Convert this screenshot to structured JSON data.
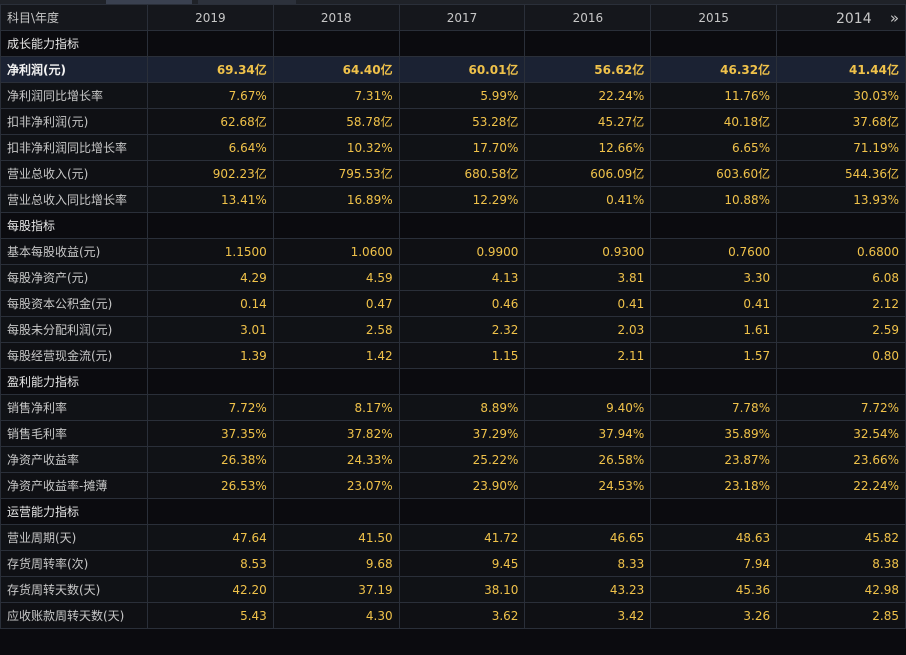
{
  "header": {
    "corner_label": "科目\\年度",
    "years": [
      "2019",
      "2018",
      "2017",
      "2016",
      "2015",
      "2014"
    ],
    "next_icon": "double-chevron-right"
  },
  "sections": [
    {
      "title": "成长能力指标",
      "rows": [
        {
          "label": "净利润(元)",
          "highlight": true,
          "values": [
            "69.34亿",
            "64.40亿",
            "60.01亿",
            "56.62亿",
            "46.32亿",
            "41.44亿"
          ]
        },
        {
          "label": "净利润同比增长率",
          "values": [
            "7.67%",
            "7.31%",
            "5.99%",
            "22.24%",
            "11.76%",
            "30.03%"
          ]
        },
        {
          "label": "扣非净利润(元)",
          "values": [
            "62.68亿",
            "58.78亿",
            "53.28亿",
            "45.27亿",
            "40.18亿",
            "37.68亿"
          ]
        },
        {
          "label": "扣非净利润同比增长率",
          "values": [
            "6.64%",
            "10.32%",
            "17.70%",
            "12.66%",
            "6.65%",
            "71.19%"
          ]
        },
        {
          "label": "营业总收入(元)",
          "values": [
            "902.23亿",
            "795.53亿",
            "680.58亿",
            "606.09亿",
            "603.60亿",
            "544.36亿"
          ]
        },
        {
          "label": "营业总收入同比增长率",
          "values": [
            "13.41%",
            "16.89%",
            "12.29%",
            "0.41%",
            "10.88%",
            "13.93%"
          ]
        }
      ]
    },
    {
      "title": "每股指标",
      "rows": [
        {
          "label": "基本每股收益(元)",
          "values": [
            "1.1500",
            "1.0600",
            "0.9900",
            "0.9300",
            "0.7600",
            "0.6800"
          ]
        },
        {
          "label": "每股净资产(元)",
          "values": [
            "4.29",
            "4.59",
            "4.13",
            "3.81",
            "3.30",
            "6.08"
          ]
        },
        {
          "label": "每股资本公积金(元)",
          "values": [
            "0.14",
            "0.47",
            "0.46",
            "0.41",
            "0.41",
            "2.12"
          ]
        },
        {
          "label": "每股未分配利润(元)",
          "values": [
            "3.01",
            "2.58",
            "2.32",
            "2.03",
            "1.61",
            "2.59"
          ]
        },
        {
          "label": "每股经营现金流(元)",
          "values": [
            "1.39",
            "1.42",
            "1.15",
            "2.11",
            "1.57",
            "0.80"
          ]
        }
      ]
    },
    {
      "title": "盈利能力指标",
      "rows": [
        {
          "label": "销售净利率",
          "values": [
            "7.72%",
            "8.17%",
            "8.89%",
            "9.40%",
            "7.78%",
            "7.72%"
          ]
        },
        {
          "label": "销售毛利率",
          "values": [
            "37.35%",
            "37.82%",
            "37.29%",
            "37.94%",
            "35.89%",
            "32.54%"
          ]
        },
        {
          "label": "净资产收益率",
          "values": [
            "26.38%",
            "24.33%",
            "25.22%",
            "26.58%",
            "23.87%",
            "23.66%"
          ]
        },
        {
          "label": "净资产收益率-摊薄",
          "values": [
            "26.53%",
            "23.07%",
            "23.90%",
            "24.53%",
            "23.18%",
            "22.24%"
          ]
        }
      ]
    },
    {
      "title": "运营能力指标",
      "rows": [
        {
          "label": "营业周期(天)",
          "values": [
            "47.64",
            "41.50",
            "41.72",
            "46.65",
            "48.63",
            "45.82"
          ]
        },
        {
          "label": "存货周转率(次)",
          "values": [
            "8.53",
            "9.68",
            "9.45",
            "8.33",
            "7.94",
            "8.38"
          ]
        },
        {
          "label": "存货周转天数(天)",
          "values": [
            "42.20",
            "37.19",
            "38.10",
            "43.23",
            "45.36",
            "42.98"
          ]
        },
        {
          "label": "应收账款周转天数(天)",
          "values": [
            "5.43",
            "4.30",
            "3.62",
            "3.42",
            "3.26",
            "2.85"
          ]
        }
      ]
    }
  ]
}
